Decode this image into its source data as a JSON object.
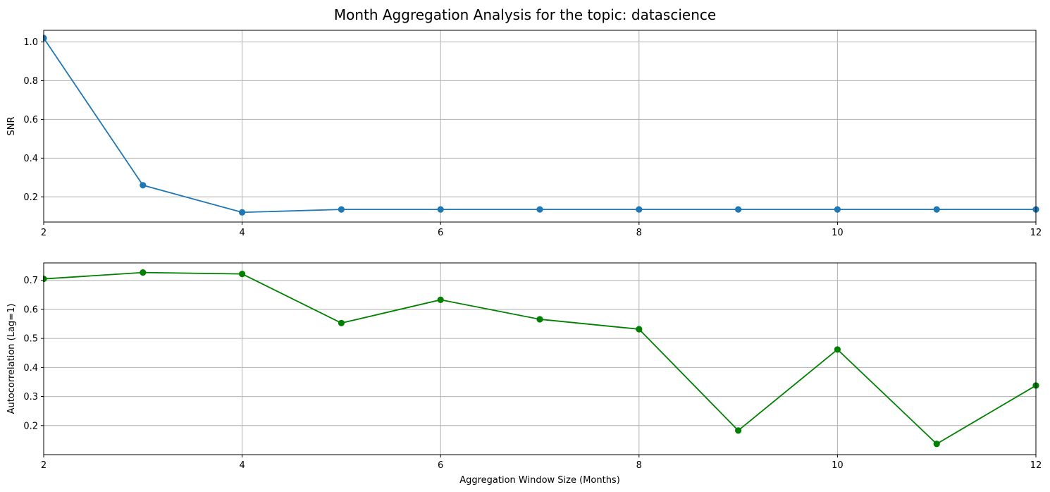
{
  "figure": {
    "title": "Month Aggregation Analysis for the topic: datascience"
  },
  "chart_data": [
    {
      "type": "line",
      "title": "",
      "xlabel": "",
      "ylabel": "SNR",
      "x": [
        2,
        3,
        4,
        5,
        6,
        7,
        8,
        9,
        10,
        11,
        12
      ],
      "series": [
        {
          "values": [
            1.02,
            0.26,
            0.12,
            0.135,
            0.135,
            0.135,
            0.135,
            0.135,
            0.135,
            0.135,
            0.135
          ],
          "color": "#1f77b4",
          "marker": "circle"
        }
      ],
      "xlim": [
        2,
        12
      ],
      "ylim": [
        0.07,
        1.06
      ],
      "xticks": [
        2,
        4,
        6,
        8,
        10,
        12
      ],
      "yticks": [
        0.2,
        0.4,
        0.6,
        0.8,
        1.0
      ],
      "ytick_labels": [
        "0.2",
        "0.4",
        "0.6",
        "0.8",
        "1.0"
      ],
      "grid": true
    },
    {
      "type": "line",
      "title": "",
      "xlabel": "Aggregation Window Size (Months)",
      "ylabel": "Autocorrelation (Lag=1)",
      "x": [
        2,
        3,
        4,
        5,
        6,
        7,
        8,
        9,
        10,
        11,
        12
      ],
      "series": [
        {
          "values": [
            0.705,
            0.727,
            0.722,
            0.553,
            0.633,
            0.566,
            0.532,
            0.183,
            0.462,
            0.137,
            0.338
          ],
          "color": "#008000",
          "marker": "circle"
        }
      ],
      "xlim": [
        2,
        12
      ],
      "ylim": [
        0.1,
        0.76
      ],
      "xticks": [
        2,
        4,
        6,
        8,
        10,
        12
      ],
      "yticks": [
        0.2,
        0.3,
        0.4,
        0.5,
        0.6,
        0.7
      ],
      "ytick_labels": [
        "0.2",
        "0.3",
        "0.4",
        "0.5",
        "0.6",
        "0.7"
      ],
      "grid": true
    }
  ]
}
